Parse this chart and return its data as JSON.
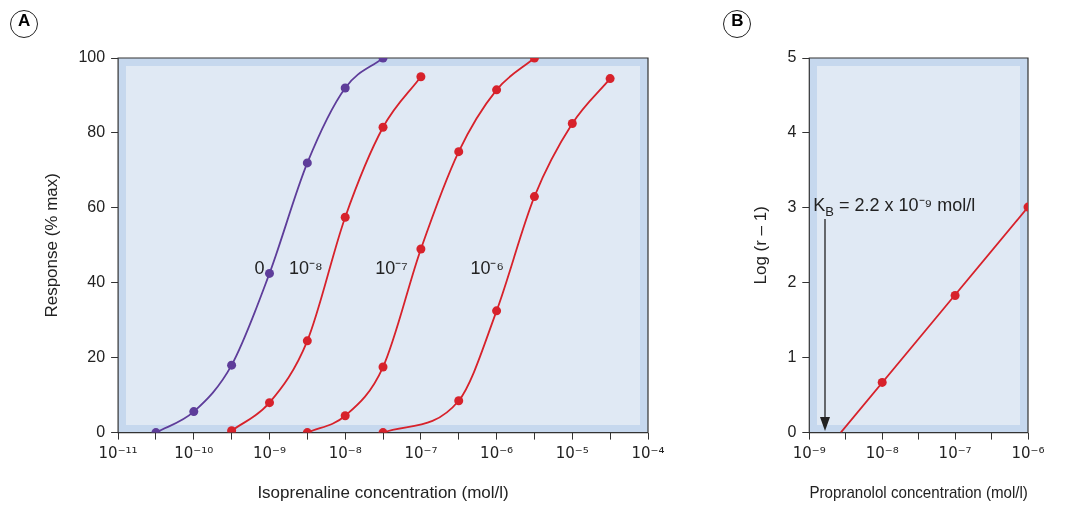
{
  "chart_data": [
    {
      "type": "line",
      "title": "A",
      "xlabel": "Isoprenaline concentration (mol/l)",
      "ylabel": "Response (% max)",
      "log": "x",
      "marker": "circle",
      "xlim": [
        1e-11,
        0.0001
      ],
      "ylim": [
        0,
        100
      ],
      "xticks": [
        {
          "value": 1e-11,
          "label": "10⁻¹¹"
        },
        {
          "value": 3.16e-11,
          "label": null
        },
        {
          "value": 1e-10,
          "label": "10⁻¹⁰"
        },
        {
          "value": 3.16e-10,
          "label": null
        },
        {
          "value": 1e-09,
          "label": "10⁻⁹"
        },
        {
          "value": 3.16e-09,
          "label": null
        },
        {
          "value": 1e-08,
          "label": "10⁻⁸"
        },
        {
          "value": 3.16e-08,
          "label": null
        },
        {
          "value": 1e-07,
          "label": "10⁻⁷"
        },
        {
          "value": 3.16e-07,
          "label": null
        },
        {
          "value": 1e-06,
          "label": "10⁻⁶"
        },
        {
          "value": 3.16e-06,
          "label": null
        },
        {
          "value": 1e-05,
          "label": "10⁻⁵"
        },
        {
          "value": 3.16e-05,
          "label": null
        },
        {
          "value": 0.0001,
          "label": "10⁻⁴"
        }
      ],
      "yticks": [
        0,
        20,
        40,
        60,
        80,
        100
      ],
      "series": [
        {
          "name": "0",
          "color": "#5e3d9a",
          "x": [
            3.16e-11,
            1e-10,
            3.16e-10,
            1e-09,
            3.16e-09,
            1e-08,
            3.16e-08
          ],
          "values": [
            0,
            5.6,
            18,
            42.5,
            72,
            92,
            100
          ]
        },
        {
          "name": "10⁻⁸",
          "color": "#d7222b",
          "x": [
            3.16e-10,
            1e-09,
            3.16e-09,
            1e-08,
            3.16e-08,
            1e-07
          ],
          "values": [
            0.5,
            8,
            24.5,
            57.5,
            81.5,
            95
          ]
        },
        {
          "name": "10⁻⁷",
          "color": "#d7222b",
          "x": [
            3.16e-09,
            1e-08,
            3.16e-08,
            1e-07,
            3.16e-07,
            1e-06,
            3.16e-06
          ],
          "values": [
            0,
            4.5,
            17.5,
            49,
            75,
            91.5,
            100
          ]
        },
        {
          "name": "10⁻⁶",
          "color": "#d7222b",
          "x": [
            3.16e-08,
            3.16e-07,
            1e-06,
            3.16e-06,
            1e-05,
            3.16e-05
          ],
          "values": [
            0,
            8.5,
            32.5,
            63,
            82.5,
            94.5
          ]
        }
      ]
    },
    {
      "type": "line",
      "title": "B",
      "xlabel": "Propranolol concentration (mol/l)",
      "ylabel": "Log (r – 1)",
      "log": "x",
      "marker": "circle",
      "xlim": [
        1e-09,
        1e-06
      ],
      "ylim": [
        0,
        5
      ],
      "xticks": [
        {
          "value": 1e-09,
          "label": "10⁻⁹"
        },
        {
          "value": 3.16e-09,
          "label": null
        },
        {
          "value": 1e-08,
          "label": "10⁻⁸"
        },
        {
          "value": 3.16e-08,
          "label": null
        },
        {
          "value": 1e-07,
          "label": "10⁻⁷"
        },
        {
          "value": 3.16e-07,
          "label": null
        },
        {
          "value": 1e-06,
          "label": "10⁻⁶"
        }
      ],
      "yticks": [
        0,
        1,
        2,
        3,
        4,
        5
      ],
      "annotations": [
        "K$_{B}$ = 2.2 x 10⁻⁹ mol/l"
      ],
      "series": [
        {
          "marker": "none",
          "color": "#d7222b",
          "x": [
            2.7e-09,
            1e-06
          ],
          "values": [
            0,
            3.01
          ]
        },
        {
          "type": "scatter",
          "color": "#d7222b",
          "x": [
            1e-08,
            1e-07,
            1e-06
          ],
          "values": [
            0.67,
            1.83,
            3.01
          ]
        }
      ]
    }
  ]
}
